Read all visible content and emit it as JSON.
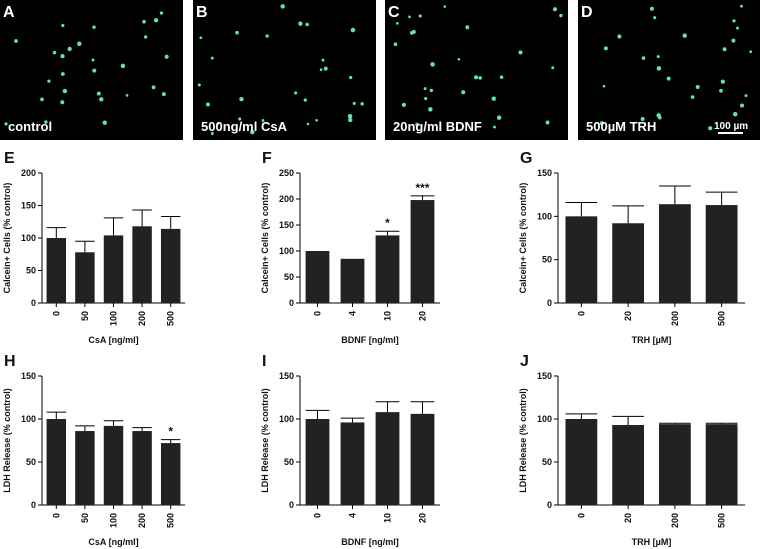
{
  "image_panels": [
    {
      "letter": "A",
      "label": "control"
    },
    {
      "letter": "B",
      "label": "500ng/ml CsA"
    },
    {
      "letter": "C",
      "label": "20ng/ml BDNF"
    },
    {
      "letter": "D",
      "label": "500µM TRH",
      "scale_bar": "100 µm"
    }
  ],
  "chart_data": [
    {
      "type": "bar",
      "letter": "E",
      "categories": [
        "0",
        "50",
        "100",
        "200",
        "500"
      ],
      "values": [
        100,
        78,
        104,
        118,
        114
      ],
      "errors": [
        16,
        17,
        27,
        25,
        19
      ],
      "significance": [
        null,
        null,
        null,
        null,
        null
      ],
      "ylabel": "Calcein+ Cells (% control)",
      "xlabel": "CsA [ng/ml]",
      "ylim": [
        0,
        200
      ],
      "yticks": [
        0,
        50,
        100,
        150,
        200
      ],
      "color": "#222222"
    },
    {
      "type": "bar",
      "letter": "F",
      "categories": [
        "0",
        "4",
        "10",
        "20"
      ],
      "values": [
        100,
        85,
        130,
        198
      ],
      "errors": [
        0,
        0,
        8,
        8
      ],
      "significance": [
        null,
        null,
        "*",
        "***"
      ],
      "ylabel": "Calcein+ Cells (% control)",
      "xlabel": "BDNF [ng/ml]",
      "ylim": [
        0,
        250
      ],
      "yticks": [
        0,
        50,
        100,
        150,
        200,
        250
      ],
      "color": "#222222"
    },
    {
      "type": "bar",
      "letter": "G",
      "categories": [
        "0",
        "20",
        "200",
        "500"
      ],
      "values": [
        100,
        92,
        114,
        113
      ],
      "errors": [
        16,
        20,
        21,
        15
      ],
      "significance": [
        null,
        null,
        null,
        null
      ],
      "ylabel": "Calcein+ Cells (% control)",
      "xlabel": "TRH [µM]",
      "ylim": [
        0,
        150
      ],
      "yticks": [
        0,
        50,
        100,
        150
      ],
      "color": "#222222"
    },
    {
      "type": "bar",
      "letter": "H",
      "categories": [
        "0",
        "50",
        "100",
        "200",
        "500"
      ],
      "values": [
        100,
        86,
        92,
        86,
        72
      ],
      "errors": [
        8,
        6,
        6,
        4,
        4
      ],
      "significance": [
        null,
        null,
        null,
        null,
        "*"
      ],
      "ylabel": "LDH Release (% control)",
      "xlabel": "CsA [ng/ml]",
      "ylim": [
        0,
        150
      ],
      "yticks": [
        0,
        50,
        100,
        150
      ],
      "color": "#222222"
    },
    {
      "type": "bar",
      "letter": "I",
      "categories": [
        "0",
        "4",
        "10",
        "20"
      ],
      "values": [
        100,
        96,
        108,
        106
      ],
      "errors": [
        10,
        5,
        12,
        14
      ],
      "significance": [
        null,
        null,
        null,
        null
      ],
      "ylabel": "LDH Release (% control)",
      "xlabel": "BDNF [ng/ml]",
      "ylim": [
        0,
        150
      ],
      "yticks": [
        0,
        50,
        100,
        150
      ],
      "color": "#222222"
    },
    {
      "type": "bar",
      "letter": "J",
      "categories": [
        "0",
        "20",
        "200",
        "500"
      ],
      "values": [
        100,
        93,
        94,
        94
      ],
      "errors": [
        6,
        10,
        1,
        1
      ],
      "significance": [
        null,
        null,
        null,
        null
      ],
      "ylabel": "LDH Release (% control)",
      "xlabel": "TRH [µM]",
      "ylim": [
        0,
        150
      ],
      "yticks": [
        0,
        50,
        100,
        150
      ],
      "color": "#222222"
    }
  ]
}
